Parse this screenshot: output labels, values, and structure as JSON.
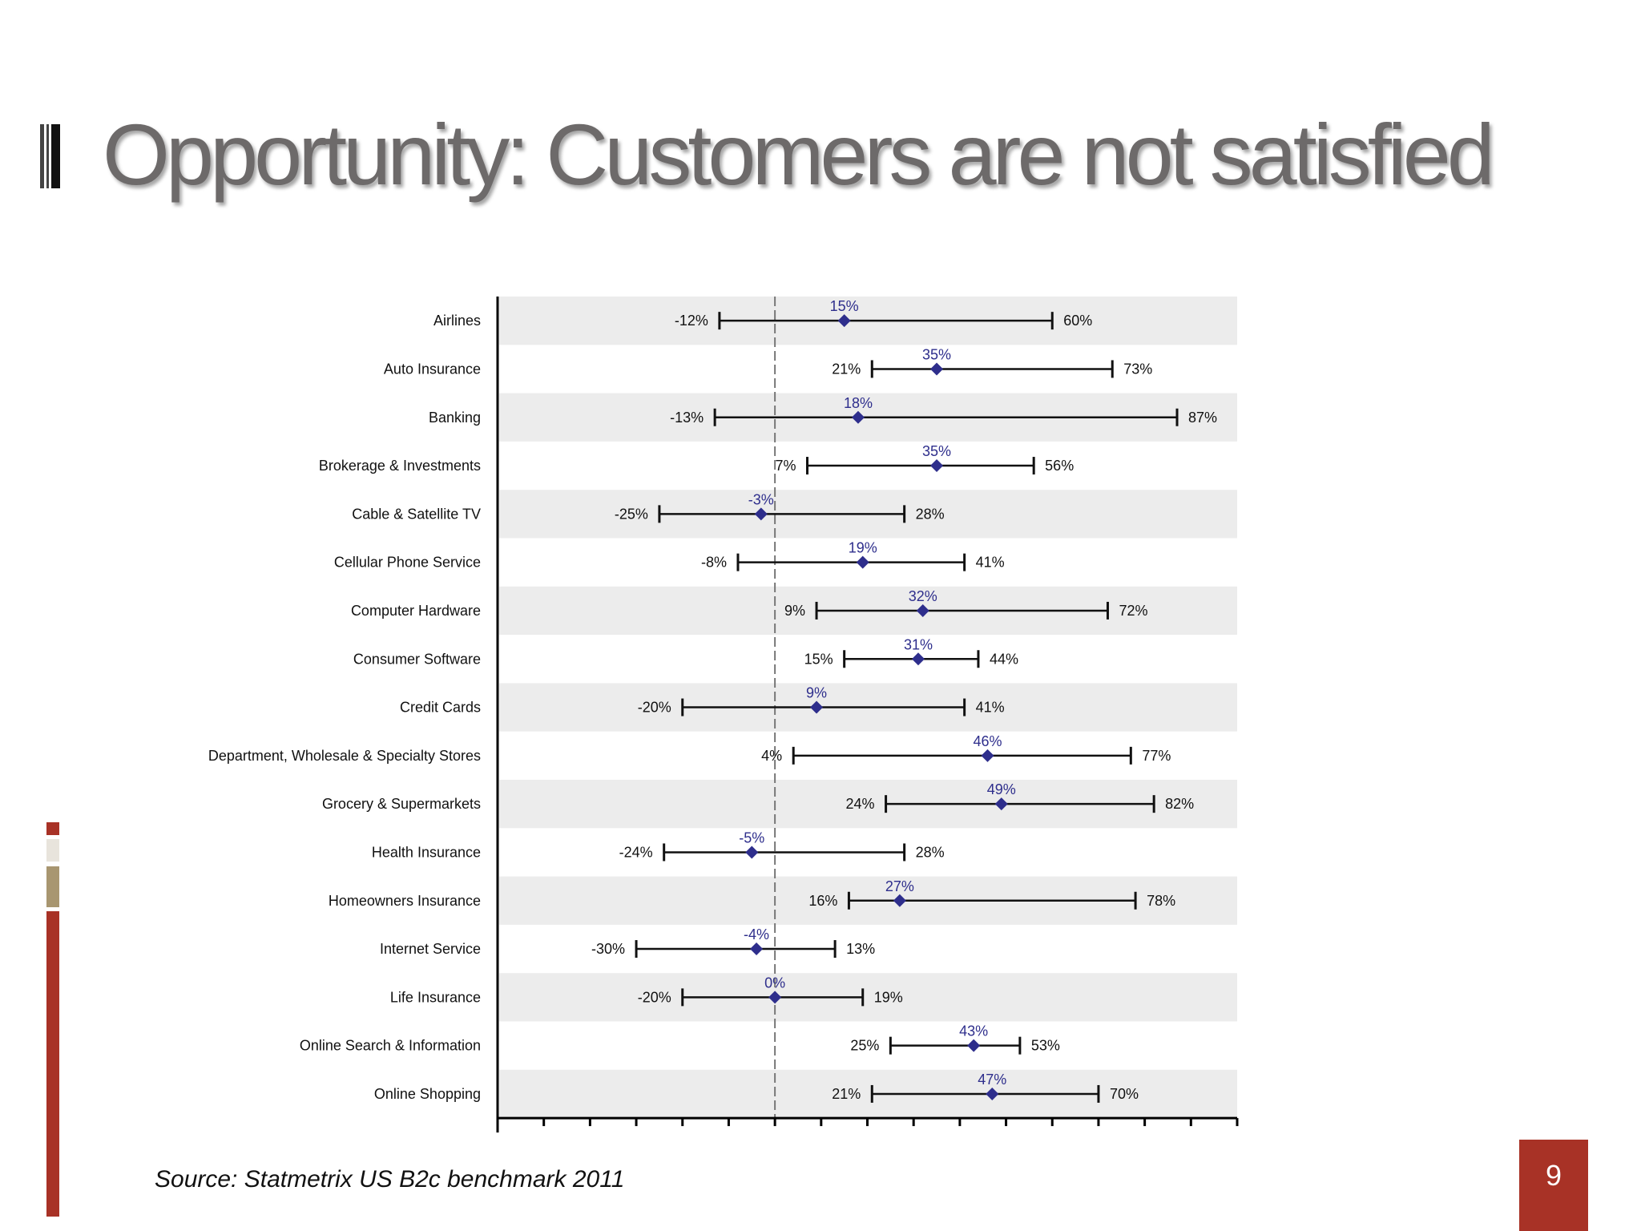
{
  "slide": {
    "title": "Opportunity: Customers are not satisfied",
    "source": "Source: Statmetrix US B2c benchmark 2011",
    "page_number": "9",
    "colors": {
      "title": "#6d6a6a",
      "accent": "#a83226",
      "tan": "#a89670",
      "marker": "#2e2e8c",
      "band": "#ececec"
    }
  },
  "chart_data": {
    "type": "range",
    "xlim": [
      -60,
      100
    ],
    "zero_line": 0,
    "grid": false,
    "categories": [
      "Airlines",
      "Auto Insurance",
      "Banking",
      "Brokerage & Investments",
      "Cable & Satellite TV",
      "Cellular Phone Service",
      "Computer Hardware",
      "Consumer Software",
      "Credit Cards",
      "Department, Wholesale & Specialty Stores",
      "Grocery & Supermarkets",
      "Health Insurance",
      "Homeowners Insurance",
      "Internet Service",
      "Life Insurance",
      "Online Search & Information",
      "Online Shopping"
    ],
    "low": [
      -12,
      21,
      -13,
      7,
      -25,
      -8,
      9,
      15,
      -20,
      4,
      24,
      -24,
      16,
      -30,
      -20,
      25,
      21
    ],
    "mid": [
      15,
      35,
      18,
      35,
      -3,
      19,
      32,
      31,
      9,
      46,
      49,
      -5,
      27,
      -4,
      0,
      43,
      47
    ],
    "high": [
      60,
      73,
      87,
      56,
      28,
      41,
      72,
      44,
      41,
      77,
      82,
      28,
      78,
      13,
      19,
      53,
      70
    ],
    "low_labels": [
      "-12%",
      "21%",
      "-13%",
      "7%",
      "-25%",
      "-8%",
      "9%",
      "15%",
      "-20%",
      "4%",
      "24%",
      "-24%",
      "16%",
      "-30%",
      "-20%",
      "25%",
      "21%"
    ],
    "mid_labels": [
      "15%",
      "35%",
      "18%",
      "35%",
      "-3%",
      "19%",
      "32%",
      "31%",
      "9%",
      "46%",
      "49%",
      "-5%",
      "27%",
      "-4%",
      "0%",
      "43%",
      "47%"
    ],
    "high_labels": [
      "60%",
      "73%",
      "87%",
      "56%",
      "28%",
      "41%",
      "72%",
      "44%",
      "41%",
      "77%",
      "82%",
      "28%",
      "78%",
      "13%",
      "19%",
      "53%",
      "70%"
    ]
  }
}
